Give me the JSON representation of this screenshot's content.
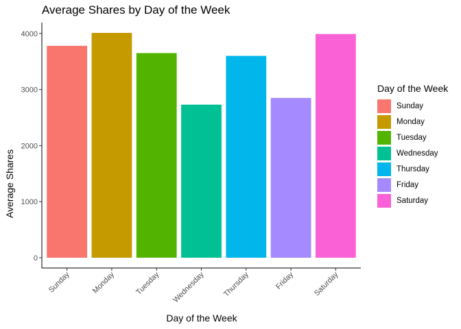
{
  "chart_data": {
    "type": "bar",
    "title": "Average Shares by Day of the Week",
    "xlabel": "Day of the Week",
    "ylabel": "Average Shares",
    "categories": [
      "Sunday",
      "Monday",
      "Tuesday",
      "Wednesday",
      "Thursday",
      "Friday",
      "Saturday"
    ],
    "values": [
      3780,
      4010,
      3650,
      2730,
      3600,
      2850,
      3990
    ],
    "colors": [
      "#F8766D",
      "#C49A00",
      "#53B400",
      "#00C094",
      "#00B6EB",
      "#A58AFF",
      "#FB61D7"
    ],
    "ylim": [
      0,
      4010
    ],
    "yticks": [
      0,
      1000,
      2000,
      3000,
      4000
    ],
    "grid": false,
    "legend": {
      "title": "Day of the Week",
      "position": "right",
      "entries": [
        "Sunday",
        "Monday",
        "Tuesday",
        "Wednesday",
        "Thursday",
        "Friday",
        "Saturday"
      ]
    }
  }
}
